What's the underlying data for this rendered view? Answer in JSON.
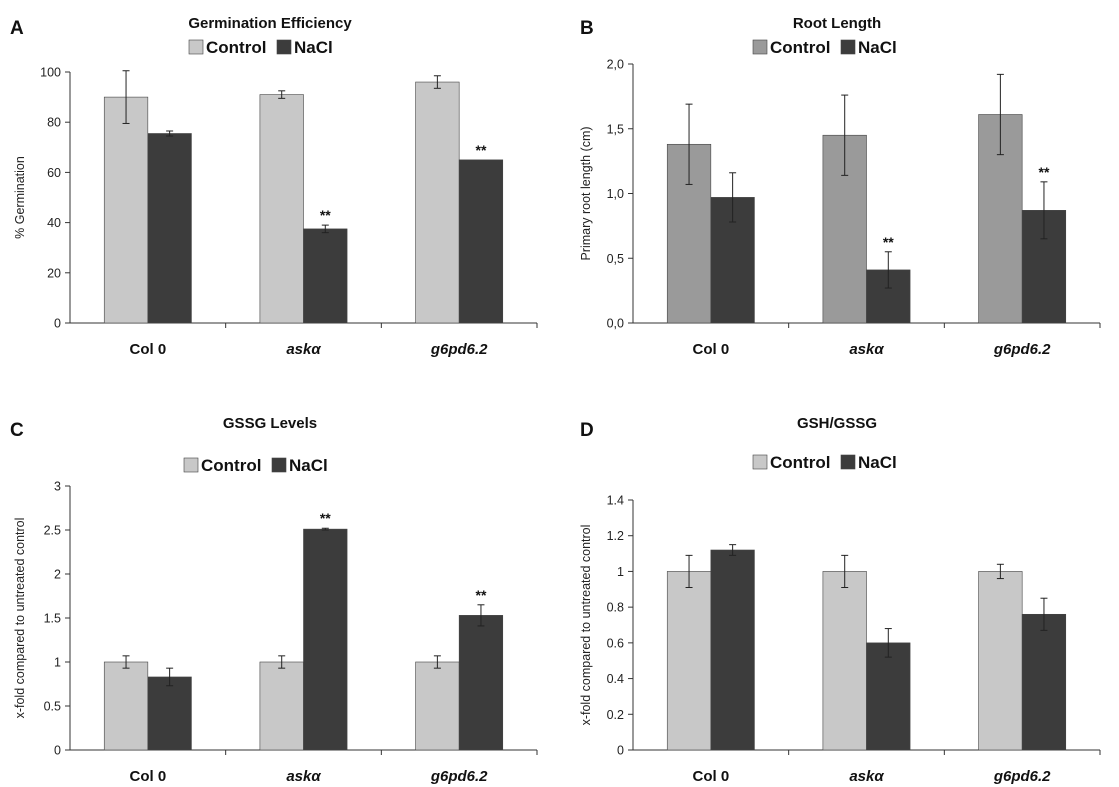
{
  "chart_data": [
    {
      "panel": "A",
      "type": "bar",
      "title": "Germination Efficiency",
      "ylabel": "% Germination",
      "categories": [
        "Col 0",
        "askα",
        "g6pd6.2"
      ],
      "italic_categories": [
        false,
        true,
        true
      ],
      "ylim": [
        0,
        100
      ],
      "yticks": [
        0,
        20,
        40,
        60,
        80,
        100
      ],
      "ytick_labels": [
        "0",
        "20",
        "40",
        "60",
        "80",
        "100"
      ],
      "series": [
        {
          "name": "Control",
          "color": "#c8c8c8",
          "values": [
            90,
            91,
            96
          ],
          "errors": [
            10.5,
            1.5,
            2.5
          ]
        },
        {
          "name": "NaCl",
          "color": "#3c3c3c",
          "values": [
            75.5,
            37.5,
            65
          ],
          "errors": [
            1,
            1.5,
            0
          ]
        }
      ],
      "annotations": [
        {
          "text": "**",
          "category": 1,
          "series": 1
        },
        {
          "text": "**",
          "category": 2,
          "series": 1
        }
      ],
      "legend_position": "top-center",
      "grid": false
    },
    {
      "panel": "B",
      "type": "bar",
      "title": "Root Length",
      "ylabel": "Primary root length (cm)",
      "categories": [
        "Col 0",
        "askα",
        "g6pd6.2"
      ],
      "italic_categories": [
        false,
        true,
        true
      ],
      "ylim": [
        0,
        2.0
      ],
      "yticks": [
        0,
        0.5,
        1.0,
        1.5,
        2.0
      ],
      "ytick_labels": [
        "0,0",
        "0,5",
        "1,0",
        "1,5",
        "2,0"
      ],
      "series": [
        {
          "name": "Control",
          "color": "#9a9a9a",
          "values": [
            1.38,
            1.45,
            1.61
          ],
          "errors": [
            0.31,
            0.31,
            0.31
          ]
        },
        {
          "name": "NaCl",
          "color": "#3c3c3c",
          "values": [
            0.97,
            0.41,
            0.87
          ],
          "errors": [
            0.19,
            0.14,
            0.22
          ]
        }
      ],
      "annotations": [
        {
          "text": "**",
          "category": 1,
          "series": 1
        },
        {
          "text": "**",
          "category": 2,
          "series": 1
        }
      ],
      "legend_position": "top-center",
      "grid": false
    },
    {
      "panel": "C",
      "type": "bar",
      "title": "GSSG Levels",
      "ylabel": "x-fold compared to untreated control",
      "categories": [
        "Col 0",
        "askα",
        "g6pd6.2"
      ],
      "italic_categories": [
        false,
        true,
        true
      ],
      "ylim": [
        0,
        3
      ],
      "yticks": [
        0,
        0.5,
        1,
        1.5,
        2,
        2.5,
        3
      ],
      "ytick_labels": [
        "0",
        "0.5",
        "1",
        "1.5",
        "2",
        "2.5",
        "3"
      ],
      "series": [
        {
          "name": "Control",
          "color": "#c8c8c8",
          "values": [
            1.0,
            1.0,
            1.0
          ],
          "errors": [
            0.07,
            0.07,
            0.07
          ]
        },
        {
          "name": "NaCl",
          "color": "#3c3c3c",
          "values": [
            0.83,
            2.51,
            1.53
          ],
          "errors": [
            0.1,
            0.01,
            0.12
          ]
        }
      ],
      "annotations": [
        {
          "text": "**",
          "category": 1,
          "series": 1
        },
        {
          "text": "**",
          "category": 2,
          "series": 1
        }
      ],
      "legend_position": "top-center",
      "grid": false
    },
    {
      "panel": "D",
      "type": "bar",
      "title": "GSH/GSSG",
      "ylabel": "x-fold compared to untreated control",
      "categories": [
        "Col 0",
        "askα",
        "g6pd6.2"
      ],
      "italic_categories": [
        false,
        true,
        true
      ],
      "ylim": [
        0,
        1.4
      ],
      "yticks": [
        0,
        0.2,
        0.4,
        0.6,
        0.8,
        1,
        1.2,
        1.4
      ],
      "ytick_labels": [
        "0",
        "0.2",
        "0.4",
        "0.6",
        "0.8",
        "1",
        "1.2",
        "1.4"
      ],
      "series": [
        {
          "name": "Control",
          "color": "#c8c8c8",
          "values": [
            1.0,
            1.0,
            1.0
          ],
          "errors": [
            0.09,
            0.09,
            0.04
          ]
        },
        {
          "name": "NaCl",
          "color": "#3c3c3c",
          "values": [
            1.12,
            0.6,
            0.76
          ],
          "errors": [
            0.03,
            0.08,
            0.09
          ]
        }
      ],
      "annotations": [],
      "legend_position": "top-center",
      "grid": false
    }
  ]
}
